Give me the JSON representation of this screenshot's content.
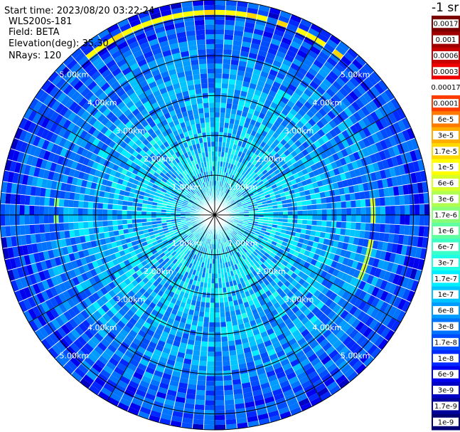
{
  "info": {
    "start_time": "Start time: 2023/08/20 03:22:24",
    "instrument": "WLS200s-181",
    "field": "Field: BETA",
    "elevation": "Elevation(deg): 35.30",
    "nrays": "NRays: 120"
  },
  "colors": {
    "grid": "#000000",
    "ray_gap": "#ffffff",
    "ring_label": "#ffffff"
  },
  "chart_data": {
    "type": "heatmap",
    "projection": "polar-ppi",
    "field": "BETA",
    "elevation_deg": 35.3,
    "n_rays": 120,
    "range_rings_km": [
      1,
      2,
      3,
      4,
      5
    ],
    "max_range_km": 5.4,
    "ring_labels": [
      "1.00km",
      "2.00km",
      "3.00km",
      "4.00km",
      "5.00km"
    ],
    "azimuth_spoke_step_deg": 30,
    "colorbar": {
      "title": "-1 sr",
      "labels": [
        "0.0017",
        "0.001",
        "0.0006",
        "0.0003",
        "0.00017",
        "0.0001",
        "6e-5",
        "3e-5",
        "1.7e-5",
        "1e-5",
        "6e-6",
        "3e-6",
        "1.7e-6",
        "1e-6",
        "6e-7",
        "3e-7",
        "1.7e-7",
        "1e-7",
        "6e-8",
        "3e-8",
        "1.7e-8",
        "1e-8",
        "6e-9",
        "3e-9",
        "1.7e-9",
        "1e-9"
      ],
      "colors": [
        "#7a0000",
        "#a10000",
        "#c80000",
        "#ee0000",
        "#ffffff",
        "#ff3c00",
        "#ff7a00",
        "#ffae00",
        "#ffd800",
        "#ffff00",
        "#d8ff28",
        "#b0ff50",
        "#88ff78",
        "#60ffa0",
        "#3cffc8",
        "#1effe6",
        "#00eeff",
        "#00c4ff",
        "#009cff",
        "#0074ff",
        "#004cff",
        "#0028ff",
        "#0000ee",
        "#0000c4",
        "#00009a",
        "#000072"
      ]
    },
    "range_profile": {
      "range_km": [
        0.0,
        0.5,
        1.0,
        1.5,
        2.0,
        2.5,
        3.0,
        3.5,
        4.0,
        4.5,
        5.0,
        5.4
      ],
      "beta_typical": [
        2e-07,
        2e-07,
        1.5e-07,
        1.5e-07,
        1.2e-07,
        1e-07,
        8e-08,
        6e-08,
        5e-08,
        3e-08,
        2e-08,
        1.5e-08
      ]
    },
    "enhanced_arcs": [
      {
        "azimuth_deg": [
          -40,
          40
        ],
        "range_km": [
          5.0,
          5.15
        ],
        "beta": 1.5e-05
      },
      {
        "azimuth_deg": [
          85,
          115
        ],
        "range_km": [
          3.9,
          4.05
        ],
        "beta": 6e-06
      },
      {
        "azimuth_deg": [
          265,
          280
        ],
        "range_km": [
          3.9,
          4.05
        ],
        "beta": 3e-06
      }
    ]
  }
}
